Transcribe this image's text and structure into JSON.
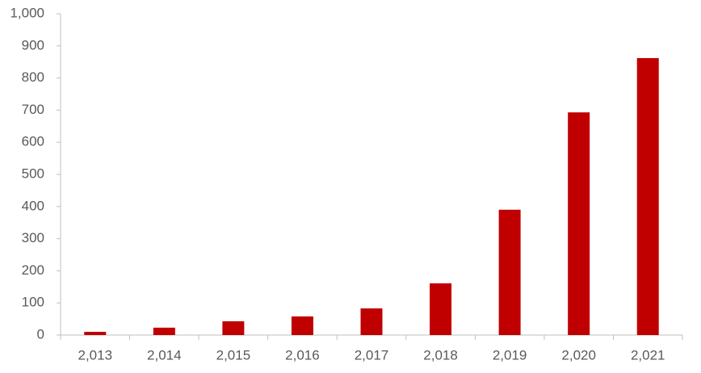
{
  "chart_data": {
    "type": "bar",
    "categories": [
      "2,013",
      "2,014",
      "2,015",
      "2,016",
      "2,017",
      "2,018",
      "2,019",
      "2,020",
      "2,021"
    ],
    "values": [
      10,
      23,
      43,
      58,
      83,
      161,
      390,
      693,
      862
    ],
    "color": "#c00000",
    "ylim": [
      0,
      1000
    ],
    "yticks": [
      0,
      100,
      200,
      300,
      400,
      500,
      600,
      700,
      800,
      900,
      {
        "value": 1000,
        "label": "1,000"
      }
    ],
    "grid": false
  }
}
